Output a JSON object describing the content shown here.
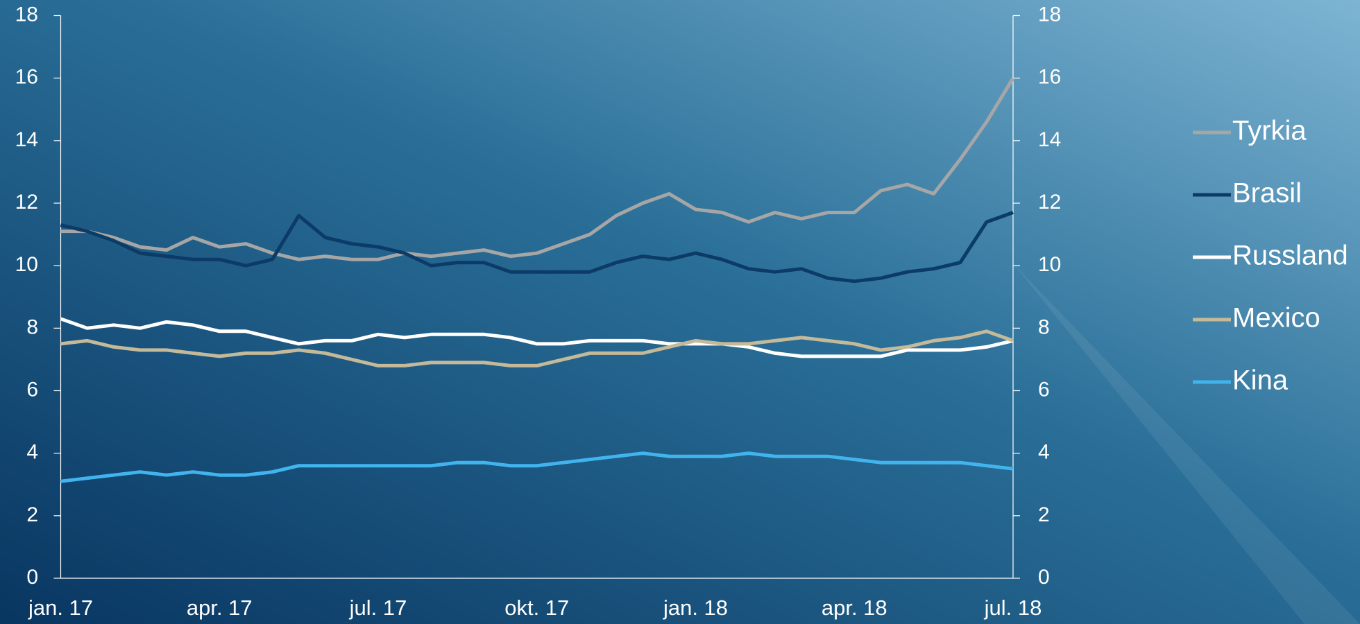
{
  "chart_data": {
    "type": "line",
    "categories": [
      "jan. 17",
      null,
      null,
      null,
      null,
      null,
      "apr. 17",
      null,
      null,
      null,
      null,
      null,
      "jul. 17",
      null,
      null,
      null,
      null,
      null,
      "okt. 17",
      null,
      null,
      null,
      null,
      null,
      "jan. 18",
      null,
      null,
      null,
      null,
      null,
      "apr. 18",
      null,
      null,
      null,
      null,
      null,
      "jul. 18"
    ],
    "series": [
      {
        "name": "Tyrkia",
        "color": "#a6a6a6",
        "values": [
          11.1,
          11.1,
          10.9,
          10.6,
          10.5,
          10.9,
          10.6,
          10.7,
          10.4,
          10.2,
          10.3,
          10.2,
          10.2,
          10.4,
          10.3,
          10.4,
          10.5,
          10.3,
          10.4,
          10.7,
          11.0,
          11.6,
          12.0,
          12.3,
          11.8,
          11.7,
          11.4,
          11.7,
          11.5,
          11.7,
          11.7,
          12.4,
          12.6,
          12.3,
          13.4,
          14.6,
          16.0
        ]
      },
      {
        "name": "Brasil",
        "color": "#0b3b66",
        "values": [
          11.3,
          11.1,
          10.8,
          10.4,
          10.3,
          10.2,
          10.2,
          10.0,
          10.2,
          11.6,
          10.9,
          10.7,
          10.6,
          10.4,
          10.0,
          10.1,
          10.1,
          9.8,
          9.8,
          9.8,
          9.8,
          10.1,
          10.3,
          10.2,
          10.4,
          10.2,
          9.9,
          9.8,
          9.9,
          9.6,
          9.5,
          9.6,
          9.8,
          9.9,
          10.1,
          11.4,
          11.7
        ]
      },
      {
        "name": "Russland",
        "color": "#ffffff",
        "values": [
          8.3,
          8.0,
          8.1,
          8.0,
          8.2,
          8.1,
          7.9,
          7.9,
          7.7,
          7.5,
          7.6,
          7.6,
          7.8,
          7.7,
          7.8,
          7.8,
          7.8,
          7.7,
          7.5,
          7.5,
          7.6,
          7.6,
          7.6,
          7.5,
          7.5,
          7.5,
          7.4,
          7.2,
          7.1,
          7.1,
          7.1,
          7.1,
          7.3,
          7.3,
          7.3,
          7.4,
          7.6
        ]
      },
      {
        "name": "Mexico",
        "color": "#c4b999",
        "values": [
          7.5,
          7.6,
          7.4,
          7.3,
          7.3,
          7.2,
          7.1,
          7.2,
          7.2,
          7.3,
          7.2,
          7.0,
          6.8,
          6.8,
          6.9,
          6.9,
          6.9,
          6.8,
          6.8,
          7.0,
          7.2,
          7.2,
          7.2,
          7.4,
          7.6,
          7.5,
          7.5,
          7.6,
          7.7,
          7.6,
          7.5,
          7.3,
          7.4,
          7.6,
          7.7,
          7.9,
          7.6
        ]
      },
      {
        "name": "Kina",
        "color": "#41b4ee",
        "values": [
          3.1,
          3.2,
          3.3,
          3.4,
          3.3,
          3.4,
          3.3,
          3.3,
          3.4,
          3.6,
          3.6,
          3.6,
          3.6,
          3.6,
          3.6,
          3.7,
          3.7,
          3.6,
          3.6,
          3.7,
          3.8,
          3.9,
          4.0,
          3.9,
          3.9,
          3.9,
          4.0,
          3.9,
          3.9,
          3.9,
          3.8,
          3.7,
          3.7,
          3.7,
          3.7,
          3.6,
          3.5
        ]
      }
    ],
    "ylim": [
      0,
      18
    ],
    "yticks": [
      0,
      2,
      4,
      6,
      8,
      10,
      12,
      14,
      16,
      18
    ],
    "y2lim": [
      0,
      18
    ],
    "y2ticks": [
      0,
      2,
      4,
      6,
      8,
      10,
      12,
      14,
      16,
      18
    ],
    "legend": "right"
  }
}
